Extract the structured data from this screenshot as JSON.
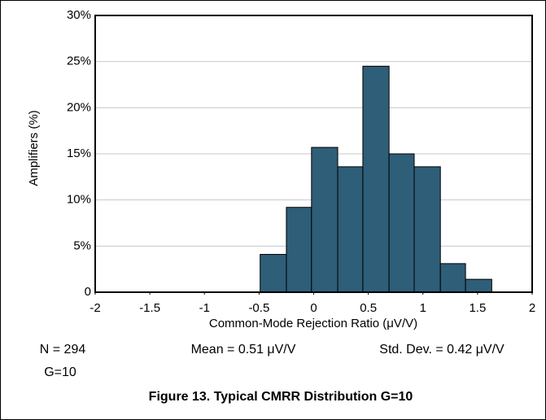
{
  "chart_data": {
    "type": "histogram",
    "caption": "Figure 13. Typical CMRR Distribution G=10",
    "x_label": "Common-Mode Rejection Ratio (μV/V)",
    "y_label": "Amplifiers (%)",
    "annotations": [
      "N = 294",
      "Mean = 0.51 μV/V",
      "Std. Dev. = 0.42 μV/V",
      "G=10"
    ],
    "bins": [
      -0.49,
      -0.25,
      -0.02,
      0.22,
      0.45,
      0.69,
      0.92,
      1.16,
      1.39,
      1.63
    ],
    "values": [
      4.1,
      9.2,
      15.7,
      13.6,
      24.5,
      15.0,
      13.6,
      3.1,
      1.4
    ],
    "color": "#2e5e78",
    "xlim": [
      -2,
      2
    ],
    "xticks": [
      -2,
      -1.5,
      -1,
      -0.5,
      0,
      0.5,
      1,
      1.5,
      2
    ],
    "ylim": [
      0,
      30
    ],
    "yticks": [
      0,
      {
        "value": 5,
        "label": "5%"
      },
      {
        "value": 10,
        "label": "10%"
      },
      {
        "value": 15,
        "label": "15%"
      },
      {
        "value": 20,
        "label": "20%"
      },
      {
        "value": 25,
        "label": "25%"
      },
      {
        "value": 30,
        "label": "30%"
      }
    ],
    "grid": true
  }
}
